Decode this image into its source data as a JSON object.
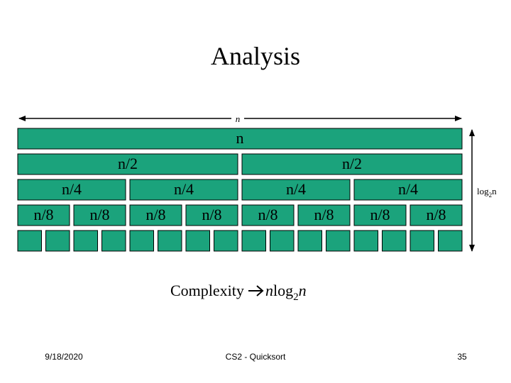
{
  "title": "Analysis",
  "width_label": "n",
  "rows": [
    {
      "labels": [
        "n"
      ]
    },
    {
      "labels": [
        "n/2",
        "n/2"
      ]
    },
    {
      "labels": [
        "n/4",
        "n/4",
        "n/4",
        "n/4"
      ]
    },
    {
      "labels": [
        "n/8",
        "n/8",
        "n/8",
        "n/8",
        "n/8",
        "n/8",
        "n/8",
        "n/8"
      ]
    },
    {
      "labels": [
        null,
        null,
        null,
        null,
        null,
        null,
        null,
        null,
        null,
        null,
        null,
        null,
        null,
        null,
        null,
        null
      ]
    }
  ],
  "depth_label": {
    "base": "log",
    "sub": "2",
    "tail": "n"
  },
  "complexity": {
    "text": "Complexity",
    "n": "n",
    "log": "log",
    "sub": "2",
    "tail": "n"
  },
  "footer": {
    "date": "9/18/2020",
    "center": "CS2 - Quicksort",
    "page": "35"
  }
}
